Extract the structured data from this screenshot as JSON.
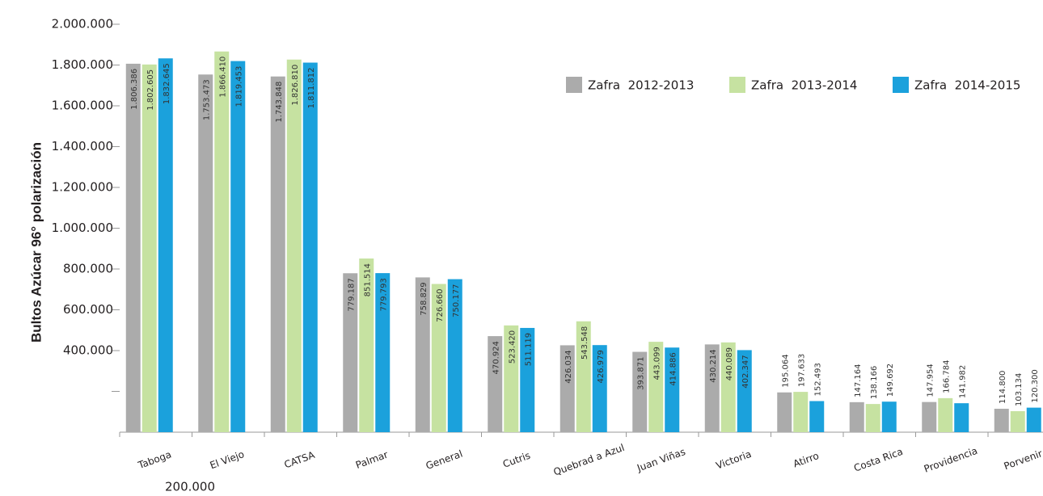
{
  "chart_data": {
    "type": "bar",
    "y_label": "Bultos Azúcar 96° polarización",
    "categories": [
      "Taboga",
      "El Viejo",
      "CATSA",
      "Palmar",
      "General",
      "Cutris",
      "Quebrad a Azul",
      "Juan Viñas",
      "Victoria",
      "Atirro",
      "Costa Rica",
      "Providencia",
      "Porvenir"
    ],
    "series": [
      {
        "name": "Zafra  2012-2013",
        "color": "#ababab",
        "values": [
          1806386,
          1753473,
          1743848,
          779187,
          758829,
          470924,
          426034,
          393871,
          430214,
          195064,
          147164,
          147954,
          114800
        ],
        "value_labels": [
          "1.806.386",
          "1.753.473",
          "1.743.848",
          "779.187",
          "758.829",
          "470.924",
          "426.034",
          "393.871",
          "430.214",
          "195.064",
          "147.164",
          "147.954",
          "114.800"
        ]
      },
      {
        "name": "Zafra  2013-2014",
        "color": "#c6e2a1",
        "values": [
          1802605,
          1866410,
          1826810,
          851514,
          726660,
          523420,
          543548,
          443099,
          440089,
          197633,
          138166,
          166784,
          103134
        ],
        "value_labels": [
          "1.802.605",
          "1.866.410",
          "1.826.810",
          "851.514",
          "726.660",
          "523.420",
          "543.548",
          "443.099",
          "440.089",
          "197.633",
          "138.166",
          "166.784",
          "103.134"
        ]
      },
      {
        "name": "Zafra  2014-2015",
        "color": "#1ba1dc",
        "values": [
          1832645,
          1819453,
          1811812,
          779793,
          750177,
          511119,
          426979,
          414886,
          402347,
          152493,
          149692,
          141982,
          120300
        ],
        "value_labels": [
          "1.832.645",
          "1.819.453",
          "1.811.812",
          "779.793",
          "750.177",
          "511.119",
          "426.979",
          "414.886",
          "402.347",
          "152.493",
          "149.692",
          "141.982",
          "120.300"
        ]
      }
    ],
    "ylim": [
      0,
      2000000
    ],
    "yticks": [
      {
        "value": 200000,
        "label": "200.000"
      },
      {
        "value": 400000,
        "label": "400.000"
      },
      {
        "value": 600000,
        "label": "600.000"
      },
      {
        "value": 800000,
        "label": "800.000"
      },
      {
        "value": 1000000,
        "label": "1.000.000"
      },
      {
        "value": 1200000,
        "label": "1.200.000"
      },
      {
        "value": 1400000,
        "label": "1.400.000"
      },
      {
        "value": 1600000,
        "label": "1.600.000"
      },
      {
        "value": 1800000,
        "label": "1.800.000"
      },
      {
        "value": 2000000,
        "label": "2.000.000"
      }
    ],
    "legend": "top-right"
  }
}
